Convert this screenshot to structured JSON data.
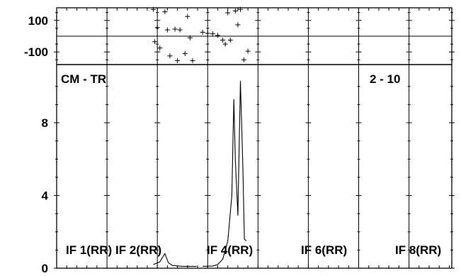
{
  "chart_data": {
    "type": "line",
    "title": "CM - TR",
    "baseline_label": "2 - 10",
    "panels": [
      "IF 1(RR)",
      "IF 2(RR)",
      "IF 4(RR)",
      "IF 6(RR)",
      "IF 8(RR)"
    ],
    "phase": {
      "ylim": [
        -180,
        180
      ],
      "yticks": [
        100,
        -100
      ],
      "points": [
        {
          "x": 3.12,
          "y": 170
        },
        {
          "x": 3.35,
          "y": 155
        },
        {
          "x": 3.2,
          "y": 55
        },
        {
          "x": 3.4,
          "y": 40
        },
        {
          "x": 3.55,
          "y": 45
        },
        {
          "x": 3.65,
          "y": 40
        },
        {
          "x": 3.8,
          "y": 125
        },
        {
          "x": 3.85,
          "y": -10
        },
        {
          "x": 3.15,
          "y": -35
        },
        {
          "x": 3.25,
          "y": -75
        },
        {
          "x": 3.45,
          "y": -125
        },
        {
          "x": 3.6,
          "y": -155
        },
        {
          "x": 3.75,
          "y": -110
        },
        {
          "x": 3.9,
          "y": -155
        },
        {
          "x": 4.1,
          "y": 25
        },
        {
          "x": 4.2,
          "y": 18
        },
        {
          "x": 4.3,
          "y": 15
        },
        {
          "x": 4.4,
          "y": 5
        },
        {
          "x": 4.5,
          "y": -25
        },
        {
          "x": 4.55,
          "y": -50
        },
        {
          "x": 4.65,
          "y": -25
        },
        {
          "x": 4.6,
          "y": 148
        },
        {
          "x": 4.75,
          "y": 160
        },
        {
          "x": 4.85,
          "y": 170
        },
        {
          "x": 4.8,
          "y": 72
        },
        {
          "x": 4.92,
          "y": -150
        },
        {
          "x": 5.0,
          "y": -95
        }
      ]
    },
    "amplitude": {
      "ylim": [
        0,
        11.2
      ],
      "yticks": [
        0,
        4,
        8
      ],
      "series": [
        {
          "x": [
            3.12,
            3.25,
            3.35,
            3.42,
            3.5,
            3.7,
            3.9,
            3.98
          ],
          "y": [
            0.2,
            0.35,
            0.8,
            0.3,
            0.15,
            0.1,
            0.1,
            0.1
          ]
        },
        {
          "x": [
            4.1,
            4.3,
            4.4,
            4.5,
            4.6,
            4.68,
            4.72,
            4.75,
            4.8,
            4.85,
            4.9,
            4.93,
            4.97
          ],
          "y": [
            0.1,
            0.12,
            0.2,
            0.5,
            1.5,
            4.0,
            9.3,
            6.0,
            2.9,
            10.3,
            5.5,
            1.6,
            1.5
          ]
        }
      ]
    },
    "xlim": [
      1.2,
      9.05
    ],
    "panel_boundaries": [
      2.2,
      3.2,
      4.2,
      5.2,
      6.2,
      7.2,
      8.2
    ]
  }
}
